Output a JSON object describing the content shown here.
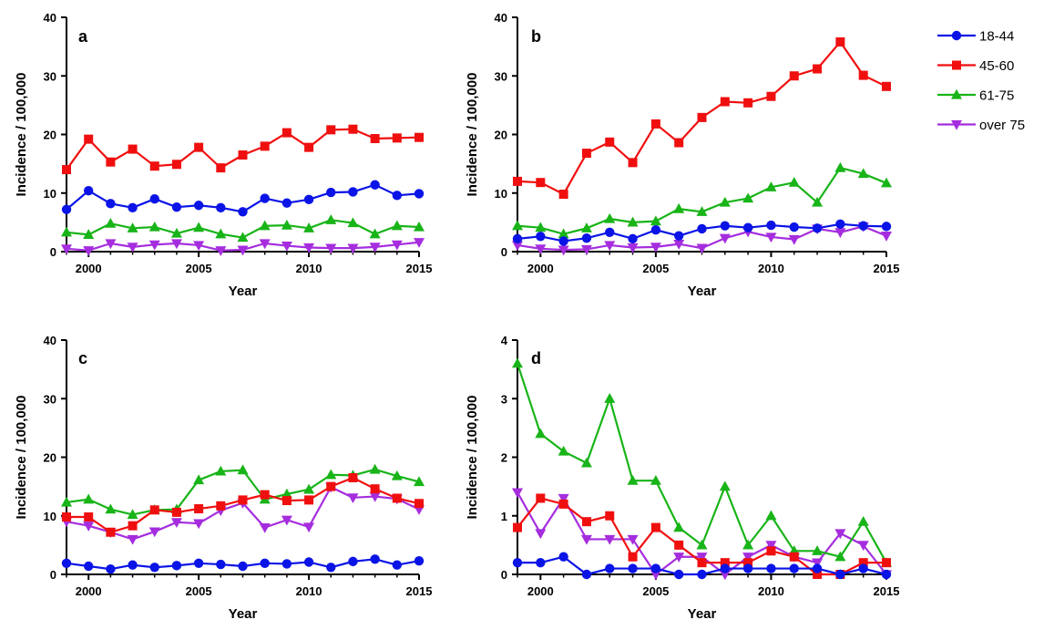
{
  "chart_data": [
    {
      "type": "line",
      "panel": "a",
      "xlabel": "Year",
      "ylabel": "Incidence / 100,000",
      "xlim": [
        1999,
        2015
      ],
      "ylim": [
        0,
        40
      ],
      "xticks": [
        2000,
        2005,
        2010,
        2015
      ],
      "yticks": [
        0,
        10,
        20,
        30,
        40
      ],
      "x": [
        1999,
        2000,
        2001,
        2002,
        2003,
        2004,
        2005,
        2006,
        2007,
        2008,
        2009,
        2010,
        2011,
        2012,
        2013,
        2014,
        2015
      ],
      "series": [
        {
          "name": "18-44",
          "values": [
            7.2,
            10.4,
            8.2,
            7.5,
            9.0,
            7.6,
            7.9,
            7.5,
            6.8,
            9.1,
            8.3,
            8.9,
            10.1,
            10.2,
            11.4,
            9.6,
            9.9
          ]
        },
        {
          "name": "45-60",
          "values": [
            14.0,
            19.2,
            15.3,
            17.5,
            14.6,
            14.9,
            17.8,
            14.3,
            16.5,
            18.0,
            20.3,
            17.8,
            20.8,
            20.9,
            19.3,
            19.4,
            19.5
          ]
        },
        {
          "name": "61-75",
          "values": [
            3.3,
            2.9,
            4.8,
            4.0,
            4.2,
            3.1,
            4.1,
            3.0,
            2.4,
            4.4,
            4.5,
            4.0,
            5.4,
            4.9,
            3.0,
            4.4,
            4.2
          ]
        },
        {
          "name": "over 75",
          "values": [
            0.5,
            0.2,
            1.4,
            0.8,
            1.2,
            1.4,
            1.1,
            0.2,
            0.3,
            1.4,
            1.0,
            0.7,
            0.6,
            0.6,
            0.8,
            1.2,
            1.6
          ]
        }
      ]
    },
    {
      "type": "line",
      "panel": "b",
      "xlabel": "Year",
      "ylabel": "Incidence / 100,000",
      "xlim": [
        1999,
        2015
      ],
      "ylim": [
        0,
        40
      ],
      "xticks": [
        2000,
        2005,
        2010,
        2015
      ],
      "yticks": [
        0,
        10,
        20,
        30,
        40
      ],
      "x": [
        1999,
        2000,
        2001,
        2002,
        2003,
        2004,
        2005,
        2006,
        2007,
        2008,
        2009,
        2010,
        2011,
        2012,
        2013,
        2014,
        2015
      ],
      "series": [
        {
          "name": "18-44",
          "values": [
            2.2,
            2.6,
            1.8,
            2.3,
            3.3,
            2.2,
            3.7,
            2.7,
            3.9,
            4.4,
            4.1,
            4.5,
            4.2,
            4.0,
            4.7,
            4.4,
            4.3
          ]
        },
        {
          "name": "45-60",
          "values": [
            12.0,
            11.8,
            9.8,
            16.8,
            18.7,
            15.2,
            21.8,
            18.6,
            22.9,
            25.6,
            25.4,
            26.5,
            30.0,
            31.2,
            35.8,
            30.1,
            28.2
          ]
        },
        {
          "name": "61-75",
          "values": [
            4.4,
            4.1,
            3.0,
            4.0,
            5.6,
            5.0,
            5.2,
            7.3,
            6.8,
            8.4,
            9.1,
            11.0,
            11.8,
            8.4,
            14.3,
            13.3,
            11.7
          ]
        },
        {
          "name": "over 75",
          "values": [
            1.1,
            0.5,
            0.3,
            0.4,
            1.1,
            0.7,
            0.8,
            1.3,
            0.6,
            2.3,
            3.4,
            2.5,
            2.1,
            3.9,
            3.3,
            4.3,
            2.7
          ]
        }
      ]
    },
    {
      "type": "line",
      "panel": "c",
      "xlabel": "Year",
      "ylabel": "Incidence / 100,000",
      "xlim": [
        1999,
        2015
      ],
      "ylim": [
        0,
        40
      ],
      "xticks": [
        2000,
        2005,
        2010,
        2015
      ],
      "yticks": [
        0,
        10,
        20,
        30,
        40
      ],
      "x": [
        1999,
        2000,
        2001,
        2002,
        2003,
        2004,
        2005,
        2006,
        2007,
        2008,
        2009,
        2010,
        2011,
        2012,
        2013,
        2014,
        2015
      ],
      "series": [
        {
          "name": "18-44",
          "values": [
            1.9,
            1.4,
            0.9,
            1.6,
            1.2,
            1.5,
            1.9,
            1.7,
            1.4,
            1.9,
            1.8,
            2.1,
            1.2,
            2.2,
            2.6,
            1.6,
            2.3
          ]
        },
        {
          "name": "45-60",
          "values": [
            9.8,
            9.8,
            7.2,
            8.3,
            11.0,
            10.6,
            11.2,
            11.7,
            12.7,
            13.6,
            12.6,
            12.7,
            15.0,
            16.5,
            14.6,
            13.0,
            12.1
          ]
        },
        {
          "name": "61-75",
          "values": [
            12.3,
            12.8,
            11.1,
            10.2,
            11.0,
            11.1,
            16.1,
            17.6,
            17.8,
            12.8,
            13.7,
            14.5,
            17.0,
            16.9,
            17.9,
            16.8,
            15.8
          ]
        },
        {
          "name": "over 75",
          "values": [
            9.0,
            8.3,
            7.2,
            6.0,
            7.3,
            8.9,
            8.7,
            10.9,
            12.2,
            8.0,
            9.3,
            8.1,
            14.9,
            13.1,
            13.3,
            12.9,
            11.1
          ]
        }
      ]
    },
    {
      "type": "line",
      "panel": "d",
      "xlabel": "Year",
      "ylabel": "Incidence / 100,000",
      "xlim": [
        1999,
        2015
      ],
      "ylim": [
        0,
        4
      ],
      "xticks": [
        2000,
        2005,
        2010,
        2015
      ],
      "yticks": [
        0,
        1,
        2,
        3,
        4
      ],
      "x": [
        1999,
        2000,
        2001,
        2002,
        2003,
        2004,
        2005,
        2006,
        2007,
        2008,
        2009,
        2010,
        2011,
        2012,
        2013,
        2014,
        2015
      ],
      "series": [
        {
          "name": "18-44",
          "values": [
            0.2,
            0.2,
            0.3,
            0.0,
            0.1,
            0.1,
            0.1,
            0.0,
            0.0,
            0.1,
            0.1,
            0.1,
            0.1,
            0.1,
            0.0,
            0.1,
            0.0
          ]
        },
        {
          "name": "45-60",
          "values": [
            0.8,
            1.3,
            1.2,
            0.9,
            1.0,
            0.3,
            0.8,
            0.5,
            0.2,
            0.2,
            0.2,
            0.4,
            0.3,
            0.0,
            0.0,
            0.2,
            0.2
          ]
        },
        {
          "name": "61-75",
          "values": [
            3.6,
            2.4,
            2.1,
            1.9,
            3.0,
            1.6,
            1.6,
            0.8,
            0.5,
            1.5,
            0.5,
            1.0,
            0.4,
            0.4,
            0.3,
            0.9,
            0.2
          ]
        },
        {
          "name": "over 75",
          "values": [
            1.4,
            0.7,
            1.3,
            0.6,
            0.6,
            0.6,
            0.0,
            0.3,
            0.3,
            0.0,
            0.3,
            0.5,
            0.3,
            0.2,
            0.7,
            0.5,
            0.0
          ]
        }
      ]
    }
  ],
  "legend": {
    "placement": "right",
    "items": [
      {
        "label": "18-44",
        "color": "#0a14e6",
        "marker": "circle"
      },
      {
        "label": "45-60",
        "color": "#f00f0f",
        "marker": "square"
      },
      {
        "label": "61-75",
        "color": "#18b418",
        "marker": "triangle-up"
      },
      {
        "label": "over 75",
        "color": "#a52dde",
        "marker": "triangle-down"
      }
    ]
  }
}
